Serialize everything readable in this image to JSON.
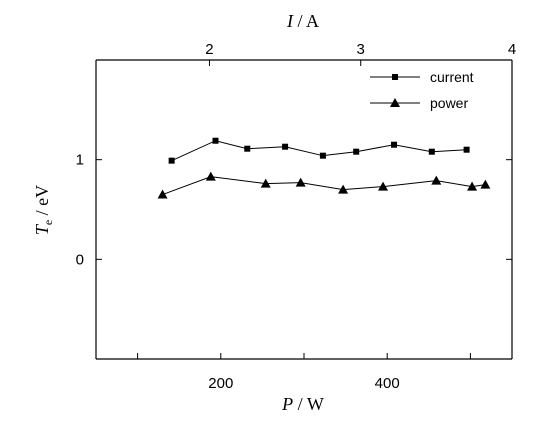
{
  "chart_data": {
    "type": "line",
    "x_bottom": {
      "var": "P",
      "unit": "W",
      "range": [
        50,
        550
      ],
      "ticks": [
        100,
        200,
        300,
        400,
        500
      ],
      "tick_labels": [
        "",
        "200",
        "",
        "400",
        ""
      ]
    },
    "x_top": {
      "var": "I",
      "unit": "A",
      "range": [
        1.25,
        4.0
      ],
      "ticks": [
        2,
        3,
        4
      ],
      "tick_labels": [
        "2",
        "3",
        "4"
      ]
    },
    "y": {
      "var": "T",
      "subscript": "e",
      "unit": "eV",
      "range": [
        -1,
        2
      ],
      "ticks": [
        -1,
        0,
        1,
        2
      ],
      "tick_labels": [
        "",
        "0",
        "1",
        ""
      ]
    },
    "legend_position": "top-right",
    "series": [
      {
        "name": "current",
        "axis": "top",
        "marker": "square",
        "x": [
          1.75,
          2.04,
          2.25,
          2.5,
          2.75,
          2.97,
          3.22,
          3.47,
          3.7
        ],
        "y": [
          0.99,
          1.19,
          1.11,
          1.13,
          1.04,
          1.08,
          1.15,
          1.08,
          1.1
        ]
      },
      {
        "name": "power",
        "axis": "bottom",
        "marker": "triangle",
        "x": [
          130,
          188,
          254,
          296,
          347,
          395,
          459,
          502,
          518
        ],
        "y": [
          0.65,
          0.83,
          0.76,
          0.77,
          0.7,
          0.73,
          0.79,
          0.73,
          0.75
        ]
      }
    ]
  }
}
